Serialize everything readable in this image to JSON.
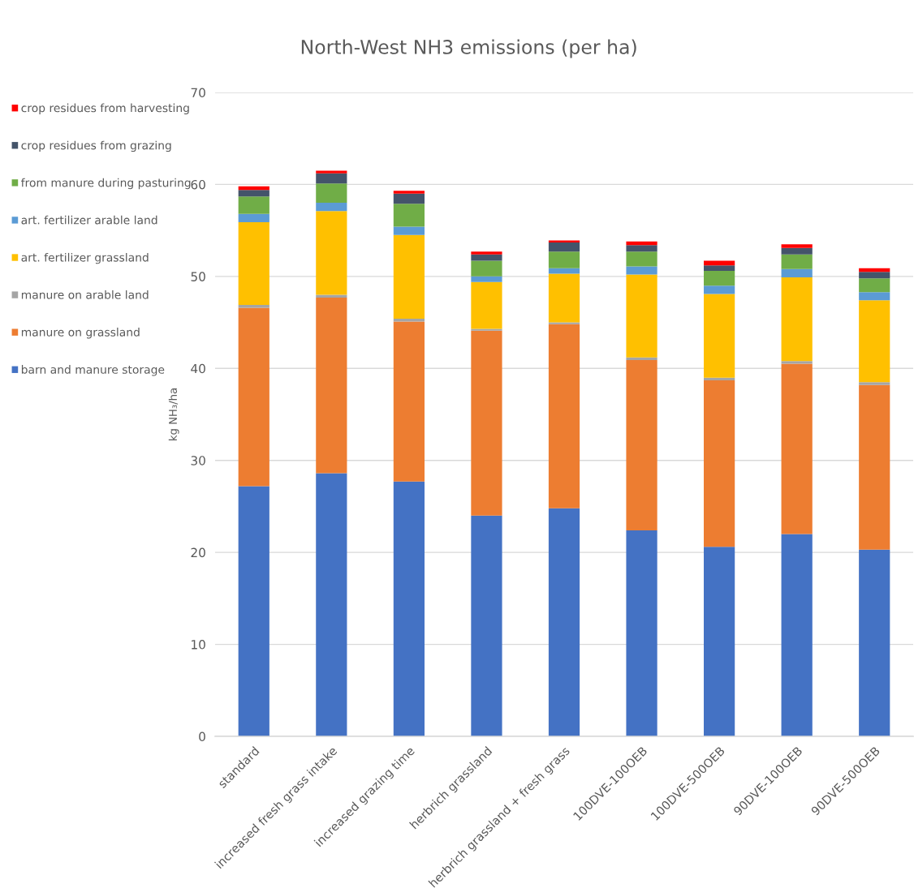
{
  "chart_data": {
    "type": "bar",
    "title": "North-West NH3 emissions (per ha)",
    "ylabel": "kg NH₃/ha",
    "categories": [
      "standard",
      "increased fresh grass intake",
      "increased grazing time",
      "herbrich grassland",
      "herbrich grassland + fresh grass",
      "100DVE-100OEB",
      "100DVE-500OEB",
      "90DVE-100OEB",
      "90DVE-500OEB"
    ],
    "stacked": true,
    "ylim": [
      0,
      70
    ],
    "yticks": [
      0,
      10,
      20,
      30,
      40,
      50,
      60,
      70
    ],
    "grid": "y",
    "legend": "left",
    "series": [
      {
        "name": "barn and manure storage",
        "color": "#4472c4",
        "values": [
          27.2,
          28.6,
          27.7,
          24.0,
          24.8,
          22.4,
          20.6,
          22.0,
          20.3
        ]
      },
      {
        "name": "manure on grassland",
        "color": "#ed7d31",
        "values": [
          19.4,
          19.1,
          17.4,
          20.1,
          20.0,
          18.5,
          18.1,
          18.5,
          17.9
        ]
      },
      {
        "name": "manure on arable land",
        "color": "#a5a5a5",
        "values": [
          0.3,
          0.3,
          0.3,
          0.2,
          0.2,
          0.3,
          0.3,
          0.3,
          0.3
        ]
      },
      {
        "name": "art. fertilizer grassland",
        "color": "#ffc000",
        "values": [
          9.0,
          9.1,
          9.1,
          5.1,
          5.3,
          9.0,
          9.1,
          9.1,
          8.9
        ]
      },
      {
        "name": "art. fertilizer arable land",
        "color": "#5b9bd5",
        "values": [
          0.9,
          0.9,
          0.9,
          0.6,
          0.6,
          0.9,
          0.9,
          0.9,
          0.9
        ]
      },
      {
        "name": "from manure during pasturing",
        "color": "#70ad47",
        "values": [
          1.9,
          2.1,
          2.5,
          1.7,
          1.8,
          1.6,
          1.6,
          1.6,
          1.5
        ]
      },
      {
        "name": "crop residues from grazing",
        "color": "#44546a",
        "values": [
          0.7,
          1.1,
          1.1,
          0.7,
          1.0,
          0.7,
          0.6,
          0.7,
          0.7
        ]
      },
      {
        "name": "crop residues from harvesting",
        "color": "#ff0000",
        "values": [
          0.4,
          0.3,
          0.3,
          0.3,
          0.2,
          0.4,
          0.5,
          0.4,
          0.4
        ]
      }
    ]
  }
}
